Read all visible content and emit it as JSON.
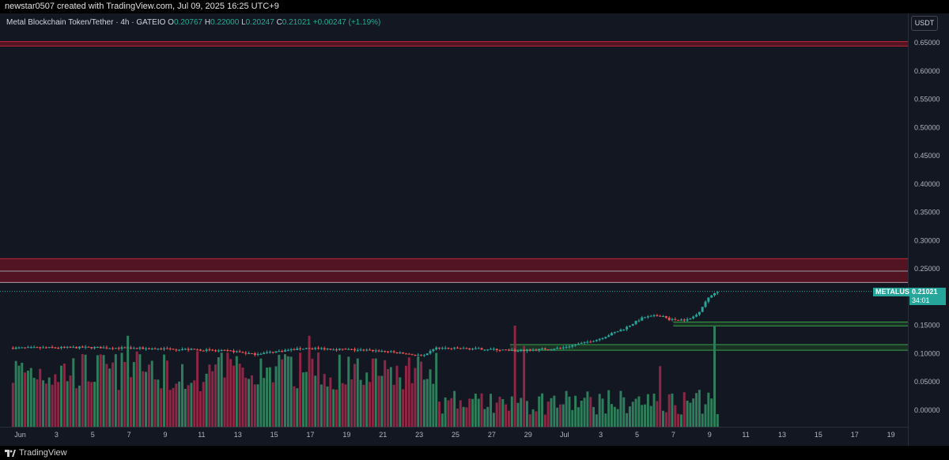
{
  "attribution": "newstar0507 created with TradingView.com, Jul 09, 2025 16:25 UTC+9",
  "branding": "TradingView",
  "header": {
    "symbol": "Metal Blockchain Token/Tether · 4h · GATEIO",
    "o_key": "O",
    "o_val": "0.20767",
    "h_key": "H",
    "h_val": "0.22000",
    "l_key": "L",
    "l_val": "0.20247",
    "c_key": "C",
    "c_val": "0.21021",
    "change": "+0.00247 (+1.19%)"
  },
  "currency_button": "USDT",
  "price_label": {
    "ticker": "METALUSDT",
    "price": "0.21021",
    "countdown": "34:01"
  },
  "colors": {
    "up": "#26a69a",
    "down": "#ef5350",
    "vol_up": "#2e7d5b",
    "vol_down": "#8e2745",
    "bg": "#131722"
  },
  "chart_data": {
    "type": "candlestick",
    "title": "Metal Blockchain Token/Tether · 4h · GATEIO",
    "ylim": [
      -0.03,
      0.68
    ],
    "y_ticks": [
      "0.65000",
      "0.60000",
      "0.55000",
      "0.50000",
      "0.45000",
      "0.40000",
      "0.35000",
      "0.30000",
      "0.25000",
      "0.20000",
      "0.15000",
      "0.10000",
      "0.05000",
      "0.00000"
    ],
    "x_ticks": [
      {
        "label": "Jun",
        "day": 1
      },
      {
        "label": "3",
        "day": 3
      },
      {
        "label": "5",
        "day": 5
      },
      {
        "label": "7",
        "day": 7
      },
      {
        "label": "9",
        "day": 9
      },
      {
        "label": "11",
        "day": 11
      },
      {
        "label": "13",
        "day": 13
      },
      {
        "label": "15",
        "day": 15
      },
      {
        "label": "17",
        "day": 17
      },
      {
        "label": "19",
        "day": 19
      },
      {
        "label": "21",
        "day": 21
      },
      {
        "label": "23",
        "day": 23
      },
      {
        "label": "25",
        "day": 25
      },
      {
        "label": "27",
        "day": 27
      },
      {
        "label": "29",
        "day": 29
      },
      {
        "label": "Jul",
        "day": 31
      },
      {
        "label": "3",
        "day": 33
      },
      {
        "label": "5",
        "day": 35
      },
      {
        "label": "7",
        "day": 37
      },
      {
        "label": "9",
        "day": 39
      },
      {
        "label": "11",
        "day": 41
      },
      {
        "label": "13",
        "day": 43
      },
      {
        "label": "15",
        "day": 45
      },
      {
        "label": "17",
        "day": 47
      },
      {
        "label": "19",
        "day": 49
      }
    ],
    "x_range_days": [
      0.6,
      50.5
    ],
    "last_price": 0.21021,
    "resistance_zones": [
      {
        "from": 0.644,
        "to": 0.652
      },
      {
        "from": 0.226,
        "to": 0.268
      }
    ],
    "resistance_lines": [
      0.246,
      0.226
    ],
    "support_zones": [
      {
        "from_day": 37.0,
        "from": 0.149,
        "to": 0.156
      },
      {
        "from_day": 28.0,
        "from": 0.106,
        "to": 0.116
      }
    ],
    "price_path": [
      {
        "day": 0.6,
        "price": 0.11
      },
      {
        "day": 5,
        "price": 0.111
      },
      {
        "day": 10,
        "price": 0.108
      },
      {
        "day": 13,
        "price": 0.104
      },
      {
        "day": 14,
        "price": 0.099
      },
      {
        "day": 17,
        "price": 0.11
      },
      {
        "day": 21,
        "price": 0.105
      },
      {
        "day": 23.5,
        "price": 0.096
      },
      {
        "day": 24,
        "price": 0.11
      },
      {
        "day": 27,
        "price": 0.108
      },
      {
        "day": 28.5,
        "price": 0.105
      },
      {
        "day": 31,
        "price": 0.11
      },
      {
        "day": 33,
        "price": 0.125
      },
      {
        "day": 34.5,
        "price": 0.145
      },
      {
        "day": 35.5,
        "price": 0.164
      },
      {
        "day": 36.5,
        "price": 0.168
      },
      {
        "day": 37,
        "price": 0.16
      },
      {
        "day": 38,
        "price": 0.16
      },
      {
        "day": 38.5,
        "price": 0.17
      },
      {
        "day": 39,
        "price": 0.195
      },
      {
        "day": 39.5,
        "price": 0.21
      }
    ],
    "volume_spikes": [
      {
        "day": 7.0,
        "level": 0.9
      },
      {
        "day": 17.0,
        "level": 0.9
      },
      {
        "day": 28.3,
        "level": 1.0
      },
      {
        "day": 28.8,
        "level": 0.8
      },
      {
        "day": 36.2,
        "level": 0.6
      },
      {
        "day": 39.2,
        "level": 1.0
      }
    ]
  }
}
